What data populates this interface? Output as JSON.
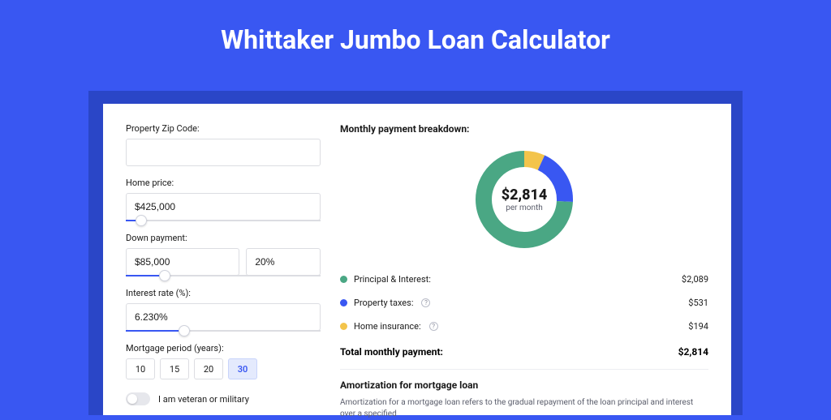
{
  "page": {
    "title": "Whittaker Jumbo Loan Calculator",
    "bg_color": "#3957f2",
    "card_shadow_color": "#2a46c7",
    "card_bg": "#ffffff"
  },
  "form": {
    "zip_label": "Property Zip Code:",
    "zip_value": "",
    "home_price_label": "Home price:",
    "home_price_value": "$425,000",
    "home_price_slider_pct": 8,
    "down_payment_label": "Down payment:",
    "down_payment_value": "$85,000",
    "down_payment_pct": "20%",
    "down_payment_slider_pct": 20,
    "interest_label": "Interest rate (%):",
    "interest_value": "6.230%",
    "interest_slider_pct": 30,
    "period_label": "Mortgage period (years):",
    "periods": [
      "10",
      "15",
      "20",
      "30"
    ],
    "period_selected": "30",
    "veteran_label": "I am veteran or military",
    "veteran_on": false
  },
  "breakdown": {
    "title": "Monthly payment breakdown:",
    "center_amount": "$2,814",
    "center_sub": "per month",
    "items": [
      {
        "label": "Principal & Interest:",
        "value": "$2,089",
        "color": "#4aa784",
        "value_num": 2089,
        "help": false
      },
      {
        "label": "Property taxes:",
        "value": "$531",
        "color": "#3957f2",
        "value_num": 531,
        "help": true
      },
      {
        "label": "Home insurance:",
        "value": "$194",
        "color": "#f3c44b",
        "value_num": 194,
        "help": true
      }
    ],
    "total_label": "Total monthly payment:",
    "total_value": "$2,814",
    "donut": {
      "size": 128,
      "stroke": 20,
      "radius": 50,
      "bg": "#ffffff"
    }
  },
  "amortization": {
    "title": "Amortization for mortgage loan",
    "text": "Amortization for a mortgage loan refers to the gradual repayment of the loan principal and interest over a specified"
  }
}
